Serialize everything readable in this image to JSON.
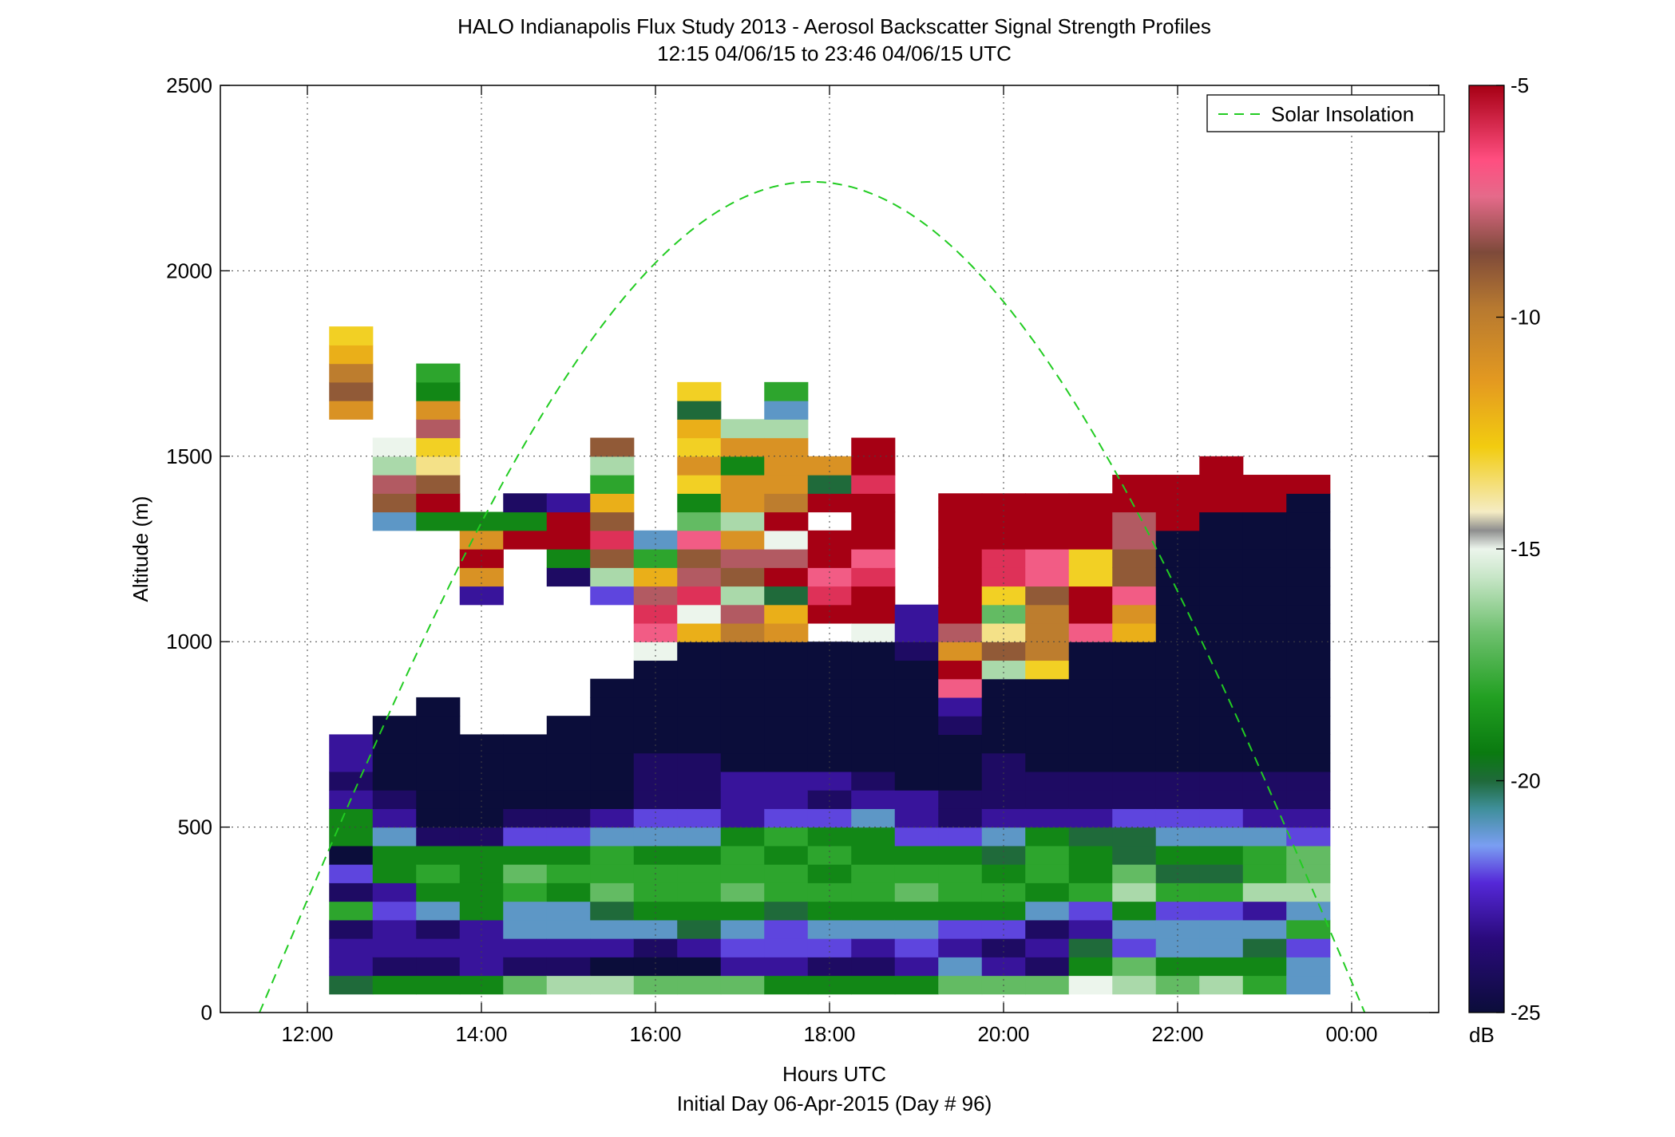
{
  "chart_data": {
    "type": "heatmap",
    "title": "HALO Indianapolis Flux Study 2013 - Aerosol Backscatter Signal Strength Profiles",
    "subtitle": "12:15 04/06/15 to 23:46 04/06/15  UTC",
    "xlabel": "Hours UTC",
    "xlabel2": "Initial Day 06-Apr-2015 (Day # 96)",
    "ylabel": "Altitude (m)",
    "x_ticks": [
      "12:00",
      "14:00",
      "16:00",
      "18:00",
      "20:00",
      "22:00",
      "00:00"
    ],
    "x_tick_hours": [
      12,
      14,
      16,
      18,
      20,
      22,
      24
    ],
    "xlim_hours": [
      11,
      25
    ],
    "y_ticks": [
      "0",
      "500",
      "1000",
      "1500",
      "2000",
      "2500"
    ],
    "ylim": [
      0,
      2500
    ],
    "grid": true,
    "colorbar": {
      "label": "dB",
      "range": [
        -25,
        -5
      ],
      "ticks": [
        "-5",
        "-10",
        "-15",
        "-20",
        "-25"
      ]
    },
    "legend": {
      "placement": "top-right",
      "entries": [
        "Solar Insolation"
      ]
    },
    "solar_curve": {
      "color": "#22cc22",
      "start_hour": 11.45,
      "end_hour": 24.15,
      "peak_altitude": 2240
    },
    "cell_hours": 0.5,
    "cell_m": 50,
    "first_hour": 12.25,
    "bottom_m": 50,
    "columns": [
      [
        "-20",
        "-23",
        "-23",
        "-24",
        "-18",
        "-24",
        "-22",
        "-25",
        "-19",
        "-19",
        "-23",
        "-24",
        "-23",
        "-23",
        "",
        "",
        "",
        "",
        "",
        "",
        "",
        "",
        "",
        "",
        "",
        "",
        "",
        "",
        "",
        "",
        "",
        "-11",
        "-9",
        "-10",
        "-12",
        "-13"
      ],
      [
        "-19",
        "-24",
        "-23",
        "-23",
        "-22",
        "-23",
        "-19",
        "-19",
        "-21",
        "-23",
        "-24",
        "-25",
        "-25",
        "-25",
        "-25",
        "",
        "",
        "",
        "",
        "",
        "",
        "",
        "",
        "",
        "",
        "-21",
        "-9",
        "-8",
        "-16",
        "-15"
      ],
      [
        "-19",
        "-24",
        "-23",
        "-24",
        "-21",
        "-19",
        "-18",
        "-19",
        "-24",
        "-25",
        "-25",
        "-25",
        "-25",
        "-25",
        "-25",
        "-25",
        "",
        "",
        "",
        "",
        "",
        "",
        "",
        "",
        "",
        "-19",
        "-5",
        "-9",
        "-14",
        "-13",
        "-8",
        "-11",
        "-19",
        "-18"
      ],
      [
        "-19",
        "-23",
        "-23",
        "-23",
        "-19",
        "-19",
        "-19",
        "-19",
        "-24",
        "-25",
        "-25",
        "-25",
        "-25",
        "-25",
        "",
        "",
        "",
        "",
        "",
        "",
        "",
        "-23",
        "-11",
        "-5",
        "-11",
        "-19"
      ],
      [
        "-17",
        "-24",
        "-23",
        "-21",
        "-21",
        "-18",
        "-17",
        "-19",
        "-22",
        "-24",
        "-25",
        "-25",
        "-25",
        "-25",
        "",
        "",
        "",
        "",
        "",
        "",
        "",
        "",
        "",
        "",
        "-5",
        "-19",
        "-24"
      ],
      [
        "-16",
        "-24",
        "-23",
        "-21",
        "-21",
        "-19",
        "-18",
        "-19",
        "-22",
        "-24",
        "-25",
        "-25",
        "-25",
        "-25",
        "-25",
        "",
        "",
        "",
        "",
        "",
        "",
        "",
        "-24",
        "-19",
        "-5",
        "-5",
        "-23"
      ],
      [
        "-16",
        "-25",
        "-23",
        "-21",
        "-20",
        "-17",
        "-18",
        "-18",
        "-21",
        "-23",
        "-25",
        "-25",
        "-25",
        "-25",
        "-25",
        "-25",
        "-25",
        "",
        "",
        "",
        "",
        "-22",
        "-16",
        "-9",
        "-6",
        "-9",
        "-12",
        "-18",
        "-16",
        "-9"
      ],
      [
        "-17",
        "-25",
        "-24",
        "-21",
        "-19",
        "-18",
        "-18",
        "-19",
        "-21",
        "-22",
        "-24",
        "-24",
        "-24",
        "-25",
        "-25",
        "-25",
        "-25",
        "-25",
        "-15",
        "-7",
        "-6",
        "-8",
        "-12",
        "-18",
        "-21"
      ],
      [
        "-17",
        "-25",
        "-23",
        "-20",
        "-19",
        "-18",
        "-18",
        "-19",
        "-21",
        "-22",
        "-24",
        "-24",
        "-24",
        "-25",
        "-25",
        "-25",
        "-25",
        "-25",
        "-25",
        "-12",
        "-15",
        "-6",
        "-8",
        "-9",
        "-7",
        "-17",
        "-19",
        "-13",
        "-11",
        "-13",
        "-12",
        "-20",
        "-13"
      ],
      [
        "-17",
        "-23",
        "-22",
        "-21",
        "-19",
        "-17",
        "-18",
        "-18",
        "-19",
        "-23",
        "-23",
        "-23",
        "-25",
        "-25",
        "-25",
        "-25",
        "-25",
        "-25",
        "-25",
        "-10",
        "-8",
        "-16",
        "-9",
        "-8",
        "-11",
        "-16",
        "-11",
        "-11",
        "-19",
        "-11",
        "-16"
      ],
      [
        "-19",
        "-23",
        "-22",
        "-22",
        "-20",
        "-18",
        "-18",
        "-19",
        "-18",
        "-22",
        "-23",
        "-23",
        "-25",
        "-25",
        "-25",
        "-25",
        "-25",
        "-25",
        "-25",
        "-11",
        "-12",
        "-20",
        "-5",
        "-8",
        "-15",
        "-5",
        "-10",
        "-11",
        "-11",
        "-11",
        "-16",
        "-21",
        "-18"
      ],
      [
        "-19",
        "-24",
        "-22",
        "-21",
        "-19",
        "-18",
        "-19",
        "-18",
        "-19",
        "-22",
        "-24",
        "-23",
        "-25",
        "-25",
        "-25",
        "-25",
        "-25",
        "-25",
        "-25",
        "",
        "-5",
        "-6",
        "-7",
        "-5",
        "-5",
        "",
        "-5",
        "-20",
        "-11"
      ],
      [
        "-19",
        "-24",
        "-23",
        "-21",
        "-19",
        "-18",
        "-18",
        "-19",
        "-19",
        "-21",
        "-23",
        "-24",
        "-25",
        "-25",
        "-25",
        "-25",
        "-25",
        "-25",
        "-25",
        "-15",
        "-5",
        "-5",
        "-6",
        "-7",
        "-5",
        "-5",
        "-5",
        "-6",
        "-5",
        "-5"
      ],
      [
        "-19",
        "-23",
        "-22",
        "-21",
        "-19",
        "-17",
        "-18",
        "-19",
        "-22",
        "-23",
        "-23",
        "-25",
        "-25",
        "-25",
        "-25",
        "-25",
        "-25",
        "-25",
        "-24",
        "-23",
        "-23"
      ],
      [
        "-17",
        "-21",
        "-23",
        "-22",
        "-19",
        "-18",
        "-18",
        "-19",
        "-22",
        "-24",
        "-24",
        "-25",
        "-25",
        "-25",
        "-24",
        "-23",
        "-7",
        "-5",
        "-11",
        "-8",
        "-5",
        "-5",
        "-5",
        "-5",
        "-5",
        "-5",
        "-5"
      ],
      [
        "-17",
        "-23",
        "-24",
        "-22",
        "-19",
        "-18",
        "-19",
        "-20",
        "-21",
        "-23",
        "-24",
        "-24",
        "-24",
        "-25",
        "-25",
        "-25",
        "-25",
        "-16",
        "-9",
        "-14",
        "-17",
        "-13",
        "-6",
        "-6",
        "-5",
        "-5",
        "-5"
      ],
      [
        "-17",
        "-24",
        "-23",
        "-24",
        "-21",
        "-19",
        "-18",
        "-18",
        "-19",
        "-23",
        "-24",
        "-24",
        "-25",
        "-25",
        "-25",
        "-25",
        "-25",
        "-13",
        "-10",
        "-10",
        "-10",
        "-9",
        "-7",
        "-7",
        "-5",
        "-5",
        "-5"
      ],
      [
        "-15",
        "-19",
        "-20",
        "-23",
        "-22",
        "-18",
        "-19",
        "-19",
        "-20",
        "-23",
        "-24",
        "-24",
        "-25",
        "-25",
        "-25",
        "-25",
        "-25",
        "-25",
        "-25",
        "-7",
        "-5",
        "-5",
        "-13",
        "-13",
        "-5",
        "-5",
        "-5"
      ],
      [
        "-16",
        "-17",
        "-22",
        "-21",
        "-19",
        "-16",
        "-17",
        "-20",
        "-20",
        "-22",
        "-24",
        "-24",
        "-25",
        "-25",
        "-25",
        "-25",
        "-25",
        "-25",
        "-25",
        "-12",
        "-11",
        "-7",
        "-9",
        "-9",
        "-8",
        "-8",
        "-5",
        "-5"
      ],
      [
        "-17",
        "-19",
        "-21",
        "-21",
        "-22",
        "-18",
        "-20",
        "-19",
        "-21",
        "-22",
        "-24",
        "-24",
        "-25",
        "-25",
        "-25",
        "-25",
        "-25",
        "-25",
        "-25",
        "-25",
        "-25",
        "-25",
        "-25",
        "-25",
        "-25",
        "-5",
        "-5",
        "-5"
      ],
      [
        "-16",
        "-19",
        "-21",
        "-21",
        "-22",
        "-18",
        "-20",
        "-19",
        "-21",
        "-22",
        "-24",
        "-24",
        "-25",
        "-25",
        "-25",
        "-25",
        "-25",
        "-25",
        "-25",
        "-25",
        "-25",
        "-25",
        "-25",
        "-25",
        "-25",
        "-25",
        "-5",
        "-5",
        "-5"
      ],
      [
        "-18",
        "-19",
        "-20",
        "-21",
        "-23",
        "-16",
        "-18",
        "-18",
        "-21",
        "-23",
        "-24",
        "-24",
        "-25",
        "-25",
        "-25",
        "-25",
        "-25",
        "-25",
        "-25",
        "-25",
        "-25",
        "-25",
        "-25",
        "-25",
        "-25",
        "-25",
        "-5",
        "-5"
      ],
      [
        "-21",
        "-21",
        "-22",
        "-18",
        "-21",
        "-16",
        "-17",
        "-17",
        "-22",
        "-23",
        "-24",
        "-24",
        "-25",
        "-25",
        "-25",
        "-25",
        "-25",
        "-25",
        "-25",
        "-25",
        "-25",
        "-25",
        "-25",
        "-25",
        "-25",
        "-25",
        "-25",
        "-5"
      ]
    ]
  }
}
